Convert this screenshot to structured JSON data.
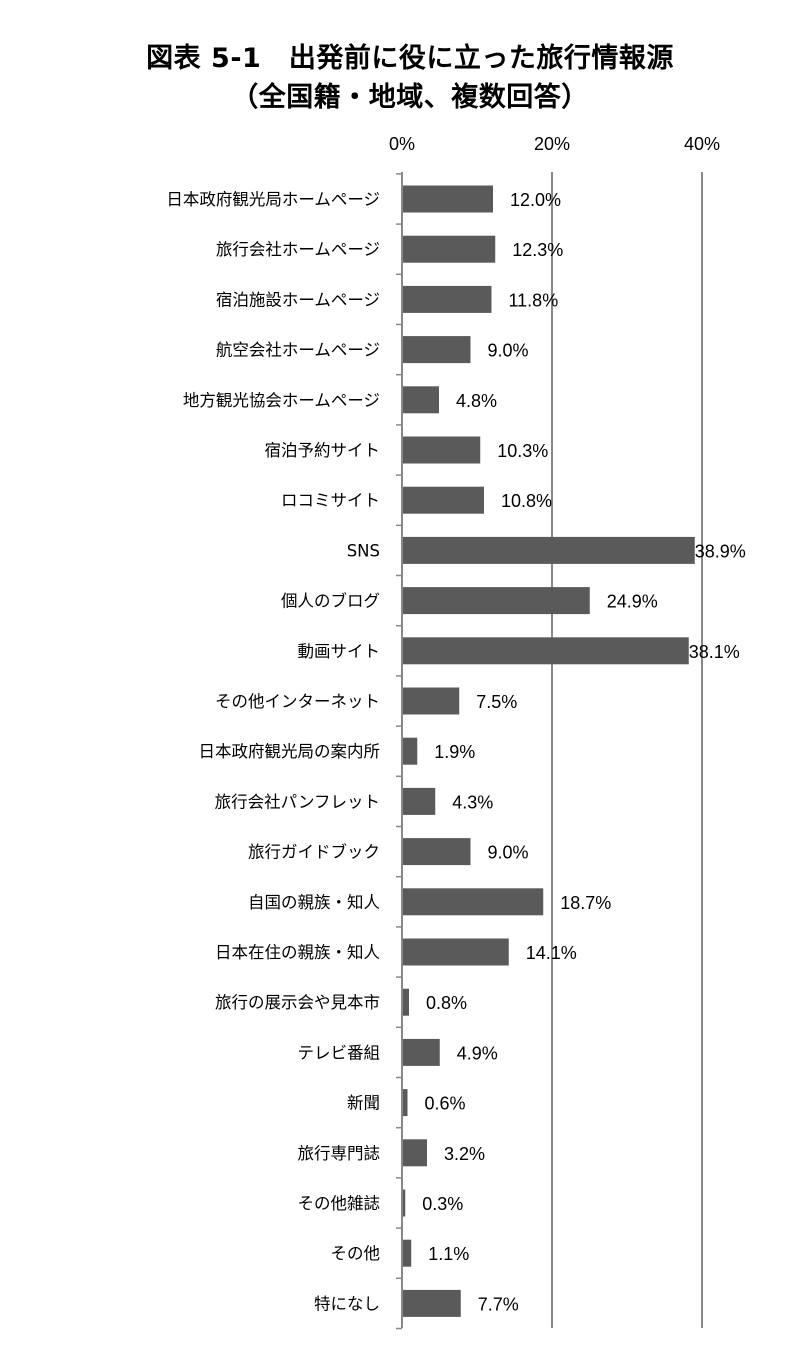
{
  "chart_data": {
    "type": "bar",
    "orientation": "horizontal",
    "title": "図表 5-1　出発前に役に立った旅行情報源",
    "subtitle": "（全国籍・地域、複数回答）",
    "xlim": [
      0,
      40
    ],
    "xticks": [
      "0%",
      "20%",
      "40%"
    ],
    "grid": true,
    "categories": [
      "日本政府観光局ホームページ",
      "旅行会社ホームページ",
      "宿泊施設ホームページ",
      "航空会社ホームページ",
      "地方観光協会ホームページ",
      "宿泊予約サイト",
      "ロコミサイト",
      "SNS",
      "個人のブログ",
      "動画サイト",
      "その他インターネット",
      "日本政府観光局の案内所",
      "旅行会社パンフレット",
      "旅行ガイドブック",
      "自国の親族・知人",
      "日本在住の親族・知人",
      "旅行の展示会や見本市",
      "テレビ番組",
      "新聞",
      "旅行専門誌",
      "その他雑誌",
      "その他",
      "特になし"
    ],
    "values": [
      12.0,
      12.3,
      11.8,
      9.0,
      4.8,
      10.3,
      10.8,
      38.9,
      24.9,
      38.1,
      7.5,
      1.9,
      4.3,
      9.0,
      18.7,
      14.1,
      0.8,
      4.9,
      0.6,
      3.2,
      0.3,
      1.1,
      7.7
    ],
    "labels": [
      "12.0%",
      "12.3%",
      "11.8%",
      "9.0%",
      "4.8%",
      "10.3%",
      "10.8%",
      "38.9%",
      "24.9%",
      "38.1%",
      "7.5%",
      "1.9%",
      "4.3%",
      "9.0%",
      "18.7%",
      "14.1%",
      "0.8%",
      "4.9%",
      "0.6%",
      "3.2%",
      "0.3%",
      "1.1%",
      "7.7%"
    ],
    "bar_color": "#5a5a5a",
    "axis_color": "#888888"
  }
}
